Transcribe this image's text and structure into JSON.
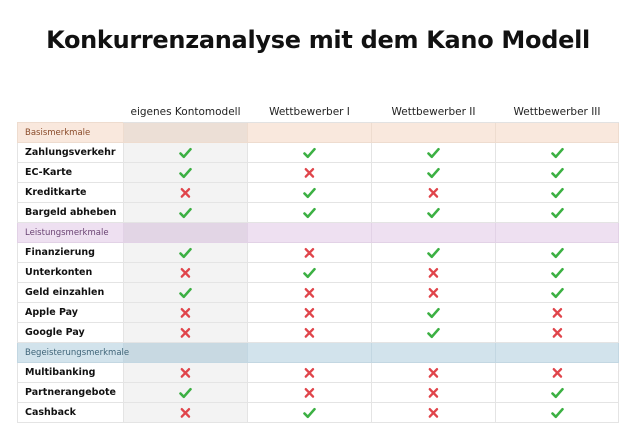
{
  "title": "Konkurrenzanalyse mit dem Kano Modell",
  "columns": [
    "",
    "eigenes Kontomodell",
    "Wettbewerber I",
    "Wettbewerber II",
    "Wettbewerber III"
  ],
  "colors": {
    "check": "#3cb043",
    "cross": "#e0454b",
    "basis_band": "#f9e8dd",
    "leistung_band": "#eee0f1",
    "begeisterung_band": "#d2e3ec"
  },
  "categories": [
    {
      "label": "Basismerkmale",
      "rows": [
        {
          "label": "Zahlungsverkehr",
          "values": [
            "check",
            "check",
            "check",
            "check"
          ]
        },
        {
          "label": "EC-Karte",
          "values": [
            "check",
            "cross",
            "check",
            "check"
          ]
        },
        {
          "label": "Kreditkarte",
          "values": [
            "cross",
            "check",
            "cross",
            "check"
          ]
        },
        {
          "label": "Bargeld abheben",
          "values": [
            "check",
            "check",
            "check",
            "check"
          ]
        }
      ]
    },
    {
      "label": "Leistungsmerkmale",
      "rows": [
        {
          "label": "Finanzierung",
          "values": [
            "check",
            "cross",
            "check",
            "check"
          ]
        },
        {
          "label": "Unterkonten",
          "values": [
            "cross",
            "check",
            "cross",
            "check"
          ]
        },
        {
          "label": "Geld einzahlen",
          "values": [
            "check",
            "cross",
            "cross",
            "check"
          ]
        },
        {
          "label": "Apple Pay",
          "values": [
            "cross",
            "cross",
            "check",
            "cross"
          ]
        },
        {
          "label": "Google Pay",
          "values": [
            "cross",
            "cross",
            "check",
            "cross"
          ]
        }
      ]
    },
    {
      "label": "Begeisterungsmerkmale",
      "rows": [
        {
          "label": "Multibanking",
          "values": [
            "cross",
            "cross",
            "cross",
            "cross"
          ]
        },
        {
          "label": "Partnerangebote",
          "values": [
            "check",
            "cross",
            "cross",
            "check"
          ]
        },
        {
          "label": "Cashback",
          "values": [
            "cross",
            "check",
            "cross",
            "check"
          ]
        }
      ]
    }
  ]
}
